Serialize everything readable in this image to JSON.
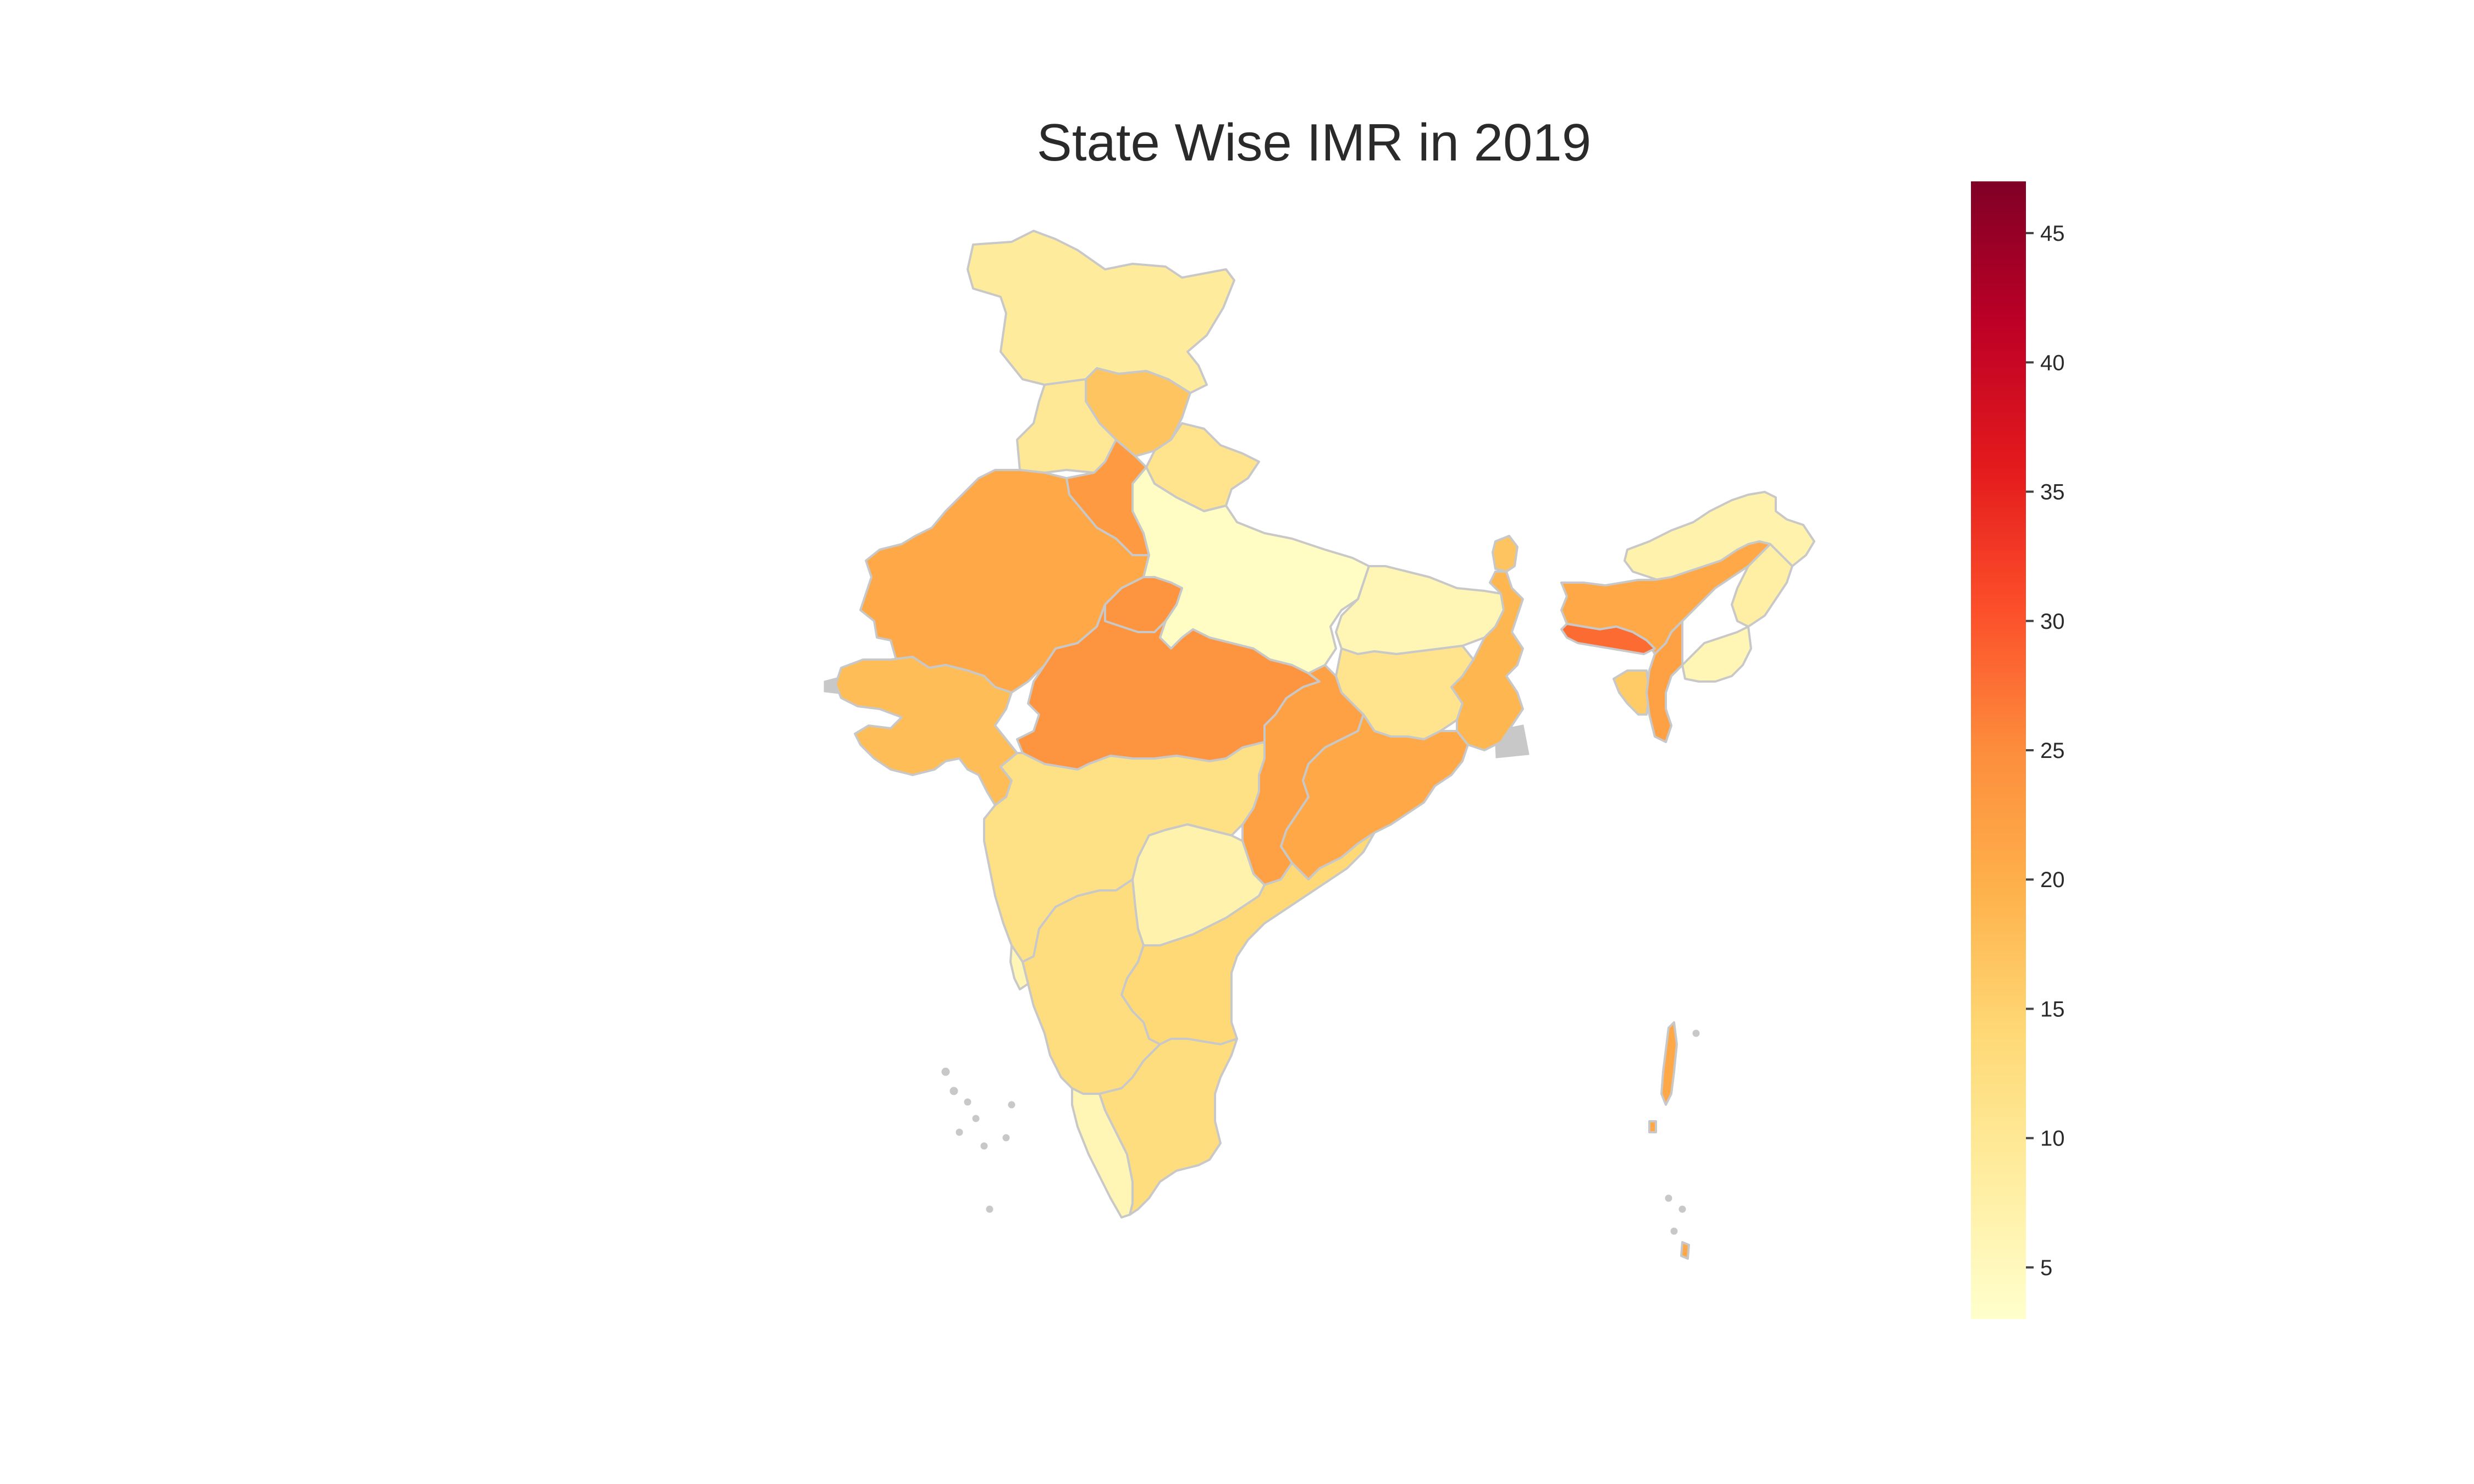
{
  "title": "State Wise IMR in 2019",
  "colors": {
    "scale": [
      "#ffffcc",
      "#ffeda0",
      "#fed976",
      "#feb24c",
      "#fd8d3c",
      "#fc4e2a",
      "#e31a1c",
      "#bd0026",
      "#800026"
    ],
    "border": "#c8c8c8",
    "no_data": "#c8c8c8"
  },
  "colorbar": {
    "min": 3,
    "max": 47,
    "ticks": [
      5,
      10,
      15,
      20,
      25,
      30,
      35,
      40,
      45
    ]
  },
  "states": [
    {
      "name": "Jammu & Kashmir",
      "value": 9
    },
    {
      "name": "Himachal Pradesh",
      "value": 17
    },
    {
      "name": "Punjab",
      "value": 10
    },
    {
      "name": "Uttarakhand",
      "value": 11
    },
    {
      "name": "Haryana",
      "value": 23
    },
    {
      "name": "Rajasthan",
      "value": 21
    },
    {
      "name": "Uttar Pradesh",
      "value": 4
    },
    {
      "name": "Gujarat",
      "value": 18
    },
    {
      "name": "Madhya Pradesh",
      "value": 24
    },
    {
      "name": "Madhya Pradesh (Gwalior region)",
      "value": 24
    },
    {
      "name": "Bihar",
      "value": 6
    },
    {
      "name": "Jharkhand",
      "value": 11
    },
    {
      "name": "West Bengal",
      "value": 19
    },
    {
      "name": "Sikkim",
      "value": 17
    },
    {
      "name": "Chhattisgarh",
      "value": 22
    },
    {
      "name": "Odisha",
      "value": 21
    },
    {
      "name": "Maharashtra",
      "value": 12
    },
    {
      "name": "Telangana",
      "value": 7
    },
    {
      "name": "Andhra Pradesh",
      "value": 14
    },
    {
      "name": "Karnataka",
      "value": 13
    },
    {
      "name": "Goa",
      "value": 6
    },
    {
      "name": "Kerala",
      "value": 6
    },
    {
      "name": "Tamil Nadu",
      "value": 13
    },
    {
      "name": "Arunachal Pradesh",
      "value": 7
    },
    {
      "name": "Assam",
      "value": 21
    },
    {
      "name": "Nagaland",
      "value": 8
    },
    {
      "name": "Meghalaya",
      "value": 28
    },
    {
      "name": "Manipur",
      "value": 6
    },
    {
      "name": "Mizoram",
      "value": 16
    },
    {
      "name": "Tripura",
      "value": 22
    },
    {
      "name": "Andaman & Nicobar",
      "value": 21
    }
  ]
}
